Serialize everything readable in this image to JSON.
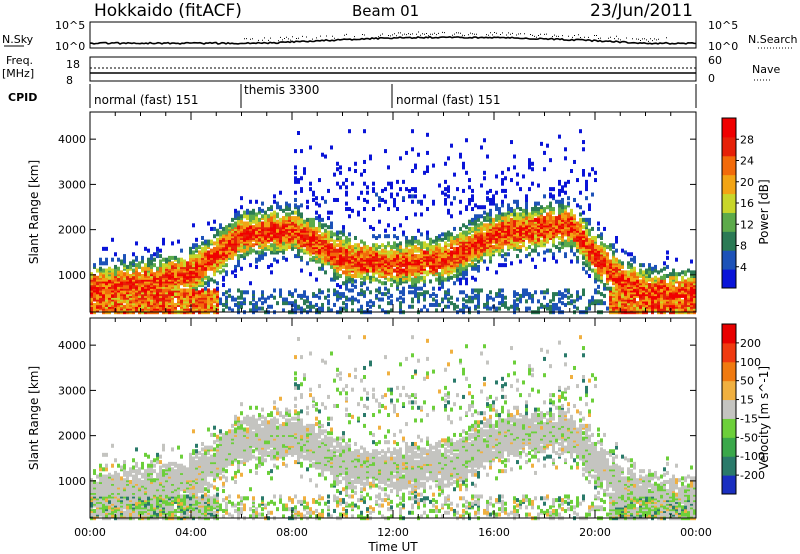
{
  "header": {
    "station": "Hokkaido (fitACF)",
    "beam": "Beam 01",
    "date": "23/Jun/2011"
  },
  "strip_panels": {
    "nsky_label": "N.Sky",
    "nsky_ticks": [
      "10^5",
      "10^0"
    ],
    "nsearch_label": "N.Search",
    "nsearch_ticks": [
      "10^5",
      "10^0"
    ],
    "freq_label_1": "Freq.",
    "freq_label_2": "[MHz]",
    "freq_ticks": [
      "18",
      "8"
    ],
    "nave_label": "Nave",
    "nave_ticks": [
      "60",
      "0"
    ],
    "cpid_label": "CPID",
    "cpid_segments": [
      {
        "label": "normal (fast) 151",
        "start_h": 0,
        "end_h": 6
      },
      {
        "label": "themis 3300",
        "start_h": 6,
        "end_h": 12
      },
      {
        "label": "normal (fast) 151",
        "start_h": 12,
        "end_h": 24
      }
    ]
  },
  "chart_data": [
    {
      "type": "heatmap",
      "title": "",
      "xlabel": "Time UT",
      "ylabel": "Slant Range [km]",
      "x_ticks": [
        "00:00",
        "04:00",
        "08:00",
        "12:00",
        "16:00",
        "20:00",
        "00:00"
      ],
      "xlim_hours": [
        0,
        24
      ],
      "y_ticks": [
        1000,
        2000,
        3000,
        4000
      ],
      "ylim": [
        180,
        4600
      ],
      "colorbar_label": "Power [dB]",
      "colorbar_ticks": [
        "4",
        "8",
        "12",
        "16",
        "20",
        "24",
        "28"
      ],
      "colorbar_colors": [
        "#0a14d8",
        "#1d52b8",
        "#2b7a55",
        "#5caa4a",
        "#c8d62a",
        "#f2a414",
        "#f26a0a",
        "#e62008",
        "#f00000"
      ],
      "band_center_km": [
        [
          0,
          700
        ],
        [
          2,
          800
        ],
        [
          4,
          1050
        ],
        [
          6,
          1900
        ],
        [
          8,
          2000
        ],
        [
          10,
          1350
        ],
        [
          12,
          1250
        ],
        [
          14,
          1350
        ],
        [
          16,
          1900
        ],
        [
          18,
          2050
        ],
        [
          19,
          2100
        ],
        [
          20,
          1400
        ],
        [
          21,
          900
        ],
        [
          22,
          600
        ],
        [
          24,
          600
        ]
      ]
    },
    {
      "type": "heatmap",
      "title": "",
      "xlabel": "Time UT",
      "ylabel": "Slant Range [km]",
      "x_ticks": [
        "00:00",
        "04:00",
        "08:00",
        "12:00",
        "16:00",
        "20:00",
        "00:00"
      ],
      "xlim_hours": [
        0,
        24
      ],
      "y_ticks": [
        1000,
        2000,
        3000,
        4000
      ],
      "ylim": [
        180,
        4600
      ],
      "colorbar_label": "Velocity [m s^-1]",
      "colorbar_ticks": [
        "200",
        "100",
        "50",
        "15",
        "-15",
        "-50",
        "-100",
        "-200"
      ],
      "colorbar_colors": [
        "#1a2fc0",
        "#2a7a6a",
        "#3aa84a",
        "#6ccf3a",
        "#c4c4c0",
        "#f0b040",
        "#f07a10",
        "#f03a10",
        "#e80000"
      ]
    }
  ],
  "colors": {
    "ground_scatter": "#c4c4c0",
    "axis": "#000000"
  }
}
